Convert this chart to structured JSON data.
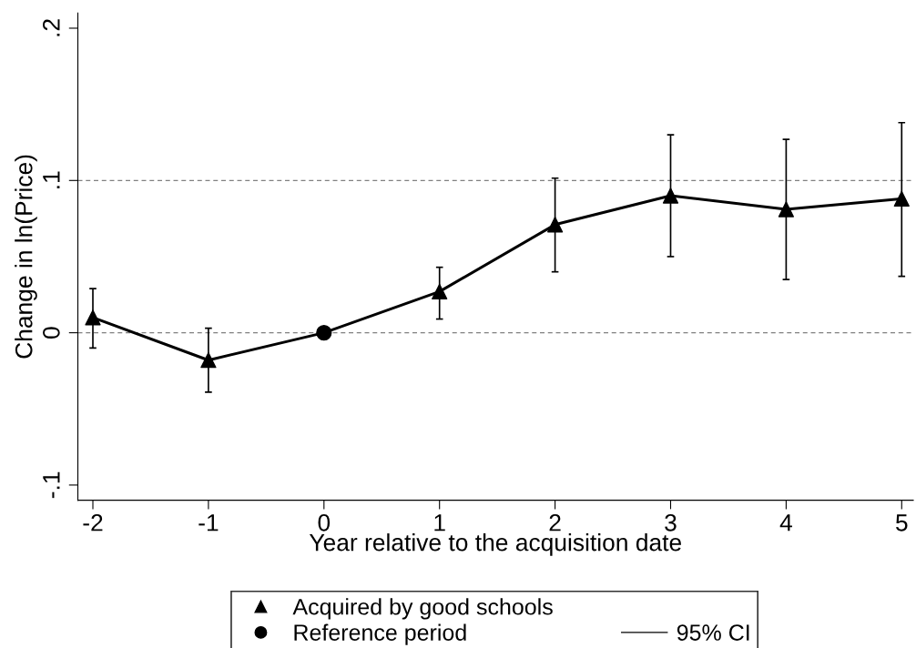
{
  "chart_data": {
    "type": "line",
    "xlabel": "Year relative to the acquisition date",
    "ylabel": "Change in ln(Price)",
    "xlim": [
      -2.13,
      5.1
    ],
    "xticks": [
      -2,
      -1,
      0,
      1,
      2,
      3,
      4,
      5
    ],
    "ylim": [
      -0.11,
      0.21
    ],
    "yticks": [
      {
        "value": -0.1,
        "label": "-.1"
      },
      {
        "value": 0,
        "label": "0"
      },
      {
        "value": 0.1,
        "label": ".1"
      },
      {
        "value": 0.2,
        "label": ".2"
      }
    ],
    "grid": false,
    "legend": "bottom",
    "ref_lines": [
      {
        "axis": "y",
        "value": 0,
        "color": "#808080",
        "line_style": "dashed"
      },
      {
        "axis": "y",
        "value": 0.1,
        "color": "#808080",
        "line_style": "dashed"
      }
    ],
    "series": [
      {
        "color": "#000000",
        "marker": "none",
        "x": [
          -2,
          -1,
          0,
          1,
          2,
          3,
          4,
          5
        ],
        "values": [
          0.01,
          -0.018,
          0,
          0.027,
          0.071,
          0.09,
          0.081,
          0.088
        ]
      },
      {
        "type": "scatter",
        "name": "Acquired by good schools",
        "color": "#000000",
        "marker": "triangle",
        "x": [
          -2,
          -1,
          1,
          2,
          3,
          4,
          5
        ],
        "values": [
          0.01,
          -0.018,
          0.027,
          0.071,
          0.09,
          0.081,
          0.088
        ],
        "errors": [
          [
            -0.01,
            0.029
          ],
          [
            -0.039,
            0.003
          ],
          [
            0.009,
            0.043
          ],
          [
            0.04,
            0.1015
          ],
          [
            0.05,
            0.13
          ],
          [
            0.035,
            0.127
          ],
          [
            0.037,
            0.138
          ]
        ]
      },
      {
        "type": "scatter",
        "name": "Reference period",
        "color": "#000000",
        "marker": "circle",
        "x": [
          0
        ],
        "values": [
          0
        ]
      }
    ],
    "annotations": [
      "95% CI"
    ]
  }
}
